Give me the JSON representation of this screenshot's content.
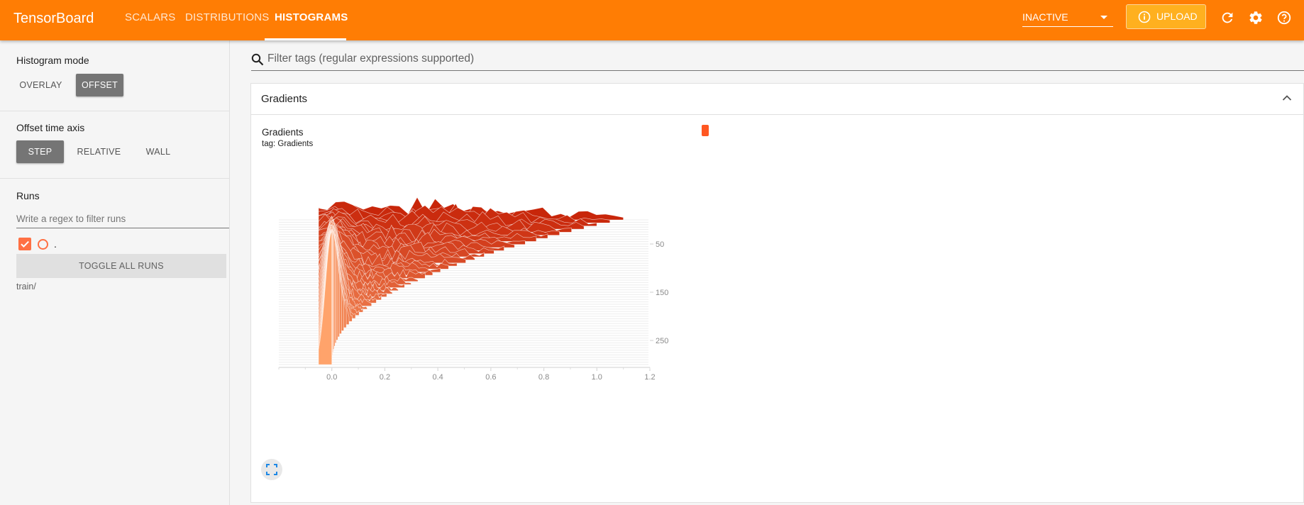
{
  "app": {
    "title": "TensorBoard",
    "tabs": [
      {
        "label": "SCALARS",
        "active": false
      },
      {
        "label": "DISTRIBUTIONS",
        "active": false
      },
      {
        "label": "HISTOGRAMS",
        "active": true
      }
    ],
    "status_select": "INACTIVE",
    "upload_label": "UPLOAD",
    "accent_color": "#ff7d04"
  },
  "sidebar": {
    "histogram_mode": {
      "title": "Histogram mode",
      "options": [
        "OVERLAY",
        "OFFSET"
      ],
      "selected": "OFFSET"
    },
    "offset_time_axis": {
      "title": "Offset time axis",
      "options": [
        "STEP",
        "RELATIVE",
        "WALL"
      ],
      "selected": "STEP"
    },
    "runs": {
      "title": "Runs",
      "filter_placeholder": "Write a regex to filter runs",
      "items": [
        {
          "label": ".",
          "checked": true,
          "color": "#ff7043"
        }
      ],
      "toggle_label": "TOGGLE ALL RUNS",
      "directory": "train/"
    }
  },
  "main": {
    "filter_placeholder": "Filter tags (regular expressions supported)",
    "group": {
      "title": "Gradients",
      "card_title": "Gradients",
      "card_tag": "tag: Gradients"
    }
  },
  "chart_data": {
    "type": "histogram",
    "mode": "offset",
    "x_ticks": [
      "0.0",
      "0.2",
      "0.4",
      "0.6",
      "0.8",
      "1.0",
      "1.2"
    ],
    "xlim": [
      -0.2,
      1.2
    ],
    "y_ticks": [
      "50",
      "150",
      "250"
    ],
    "step_range": [
      0,
      300
    ],
    "series_color": "#ff5722"
  }
}
